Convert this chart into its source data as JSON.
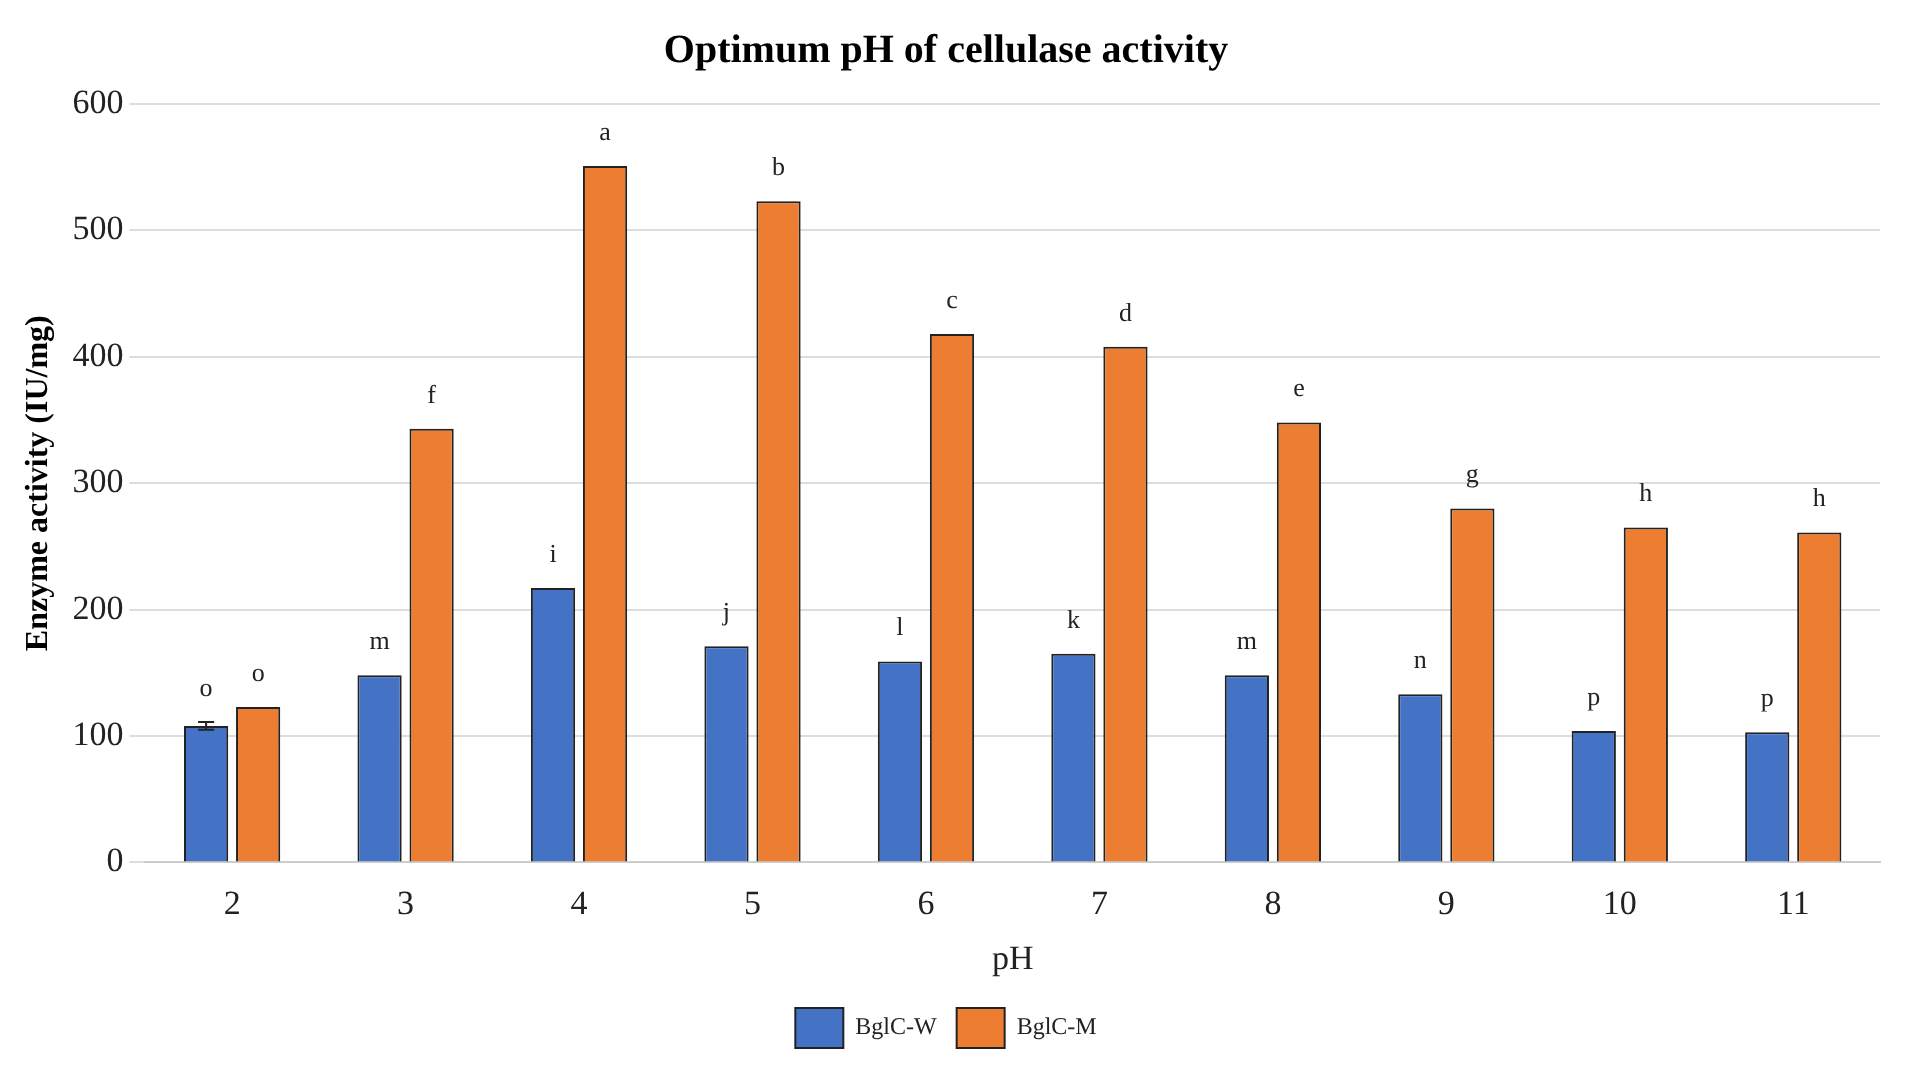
{
  "chart_data": {
    "type": "bar",
    "title": "Optimum pH of cellulase activity",
    "xlabel": "pH",
    "ylabel": "Enzyme activity (IU/mg)",
    "categories": [
      "2",
      "3",
      "4",
      "5",
      "6",
      "7",
      "8",
      "9",
      "10",
      "11"
    ],
    "series": [
      {
        "name": "BglC-W",
        "color": "#4472c4",
        "values": [
          108,
          148,
          217,
          171,
          159,
          165,
          148,
          133,
          104,
          103
        ],
        "errors": [
          3,
          null,
          null,
          null,
          null,
          null,
          null,
          null,
          null,
          null
        ],
        "value_labels": [
          "o",
          "m",
          "i",
          "j",
          "l",
          "k",
          "m",
          "n",
          "p",
          "p"
        ]
      },
      {
        "name": "BglC-M",
        "color": "#ed7d31",
        "values": [
          123,
          343,
          551,
          523,
          418,
          408,
          348,
          280,
          265,
          261
        ],
        "value_labels": [
          "o",
          "f",
          "a",
          "b",
          "c",
          "d",
          "e",
          "g",
          "h",
          "h"
        ]
      }
    ],
    "ylim": [
      0,
      600
    ],
    "yticks": [
      0,
      100,
      200,
      300,
      400,
      500,
      600
    ],
    "grid": "y",
    "legend": "bottom"
  }
}
